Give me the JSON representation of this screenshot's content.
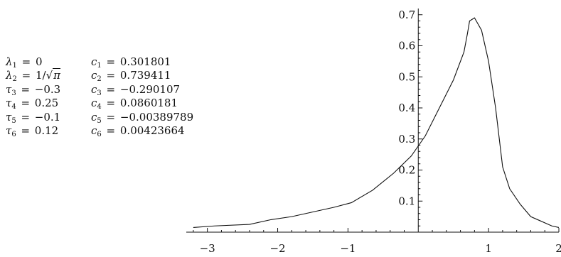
{
  "params": [
    {
      "left_sym": "λ",
      "left_sub": "1",
      "left_val": "0",
      "right_sym": "c",
      "right_sub": "1",
      "right_val": "0.301801"
    },
    {
      "left_sym": "λ",
      "left_sub": "2",
      "left_val": "1/",
      "left_sqrt": "π",
      "right_sym": "c",
      "right_sub": "2",
      "right_val": "0.739411"
    },
    {
      "left_sym": "τ",
      "left_sub": "3",
      "left_val": "−0.3",
      "right_sym": "c",
      "right_sub": "3",
      "right_val": "−0.290107"
    },
    {
      "left_sym": "τ",
      "left_sub": "4",
      "left_val": "0.25",
      "right_sym": "c",
      "right_sub": "4",
      "right_val": "0.0860181"
    },
    {
      "left_sym": "τ",
      "left_sub": "5",
      "left_val": "−0.1",
      "right_sym": "c",
      "right_sub": "5",
      "right_val": "−0.00389789"
    },
    {
      "left_sym": "τ",
      "left_sub": "6",
      "left_val": "0.12",
      "right_sym": "c",
      "right_sub": "6",
      "right_val": "0.00423664"
    }
  ],
  "chart_data": {
    "type": "line",
    "title": "",
    "xlabel": "",
    "ylabel": "",
    "xlim": [
      -3.3,
      2.0
    ],
    "ylim": [
      0,
      0.72
    ],
    "x_ticks": [
      -3,
      -2,
      -1,
      1,
      2
    ],
    "x_tick_labels": [
      "−3",
      "−2",
      "−1",
      "1",
      "2"
    ],
    "y_ticks": [
      0.1,
      0.2,
      0.3,
      0.4,
      0.5,
      0.6,
      0.7
    ],
    "y_tick_labels": [
      "0.1",
      "0.2",
      "0.3",
      "0.4",
      "0.5",
      "0.6",
      "0.7"
    ],
    "grid": false,
    "series": [
      {
        "x": [
          -3.2,
          -2.9,
          -2.4,
          -2.1,
          -1.8,
          -1.4,
          -1.2,
          -0.95,
          -0.65,
          -0.35,
          -0.1,
          0.1,
          0.3,
          0.5,
          0.65,
          0.7,
          0.73,
          0.8,
          0.9,
          1.0,
          1.1,
          1.2,
          1.3,
          1.45,
          1.6,
          1.75,
          1.9,
          2.0
        ],
        "y": [
          0.015,
          0.02,
          0.025,
          0.04,
          0.05,
          0.07,
          0.08,
          0.095,
          0.135,
          0.19,
          0.245,
          0.31,
          0.4,
          0.49,
          0.58,
          0.64,
          0.68,
          0.69,
          0.65,
          0.55,
          0.4,
          0.21,
          0.14,
          0.09,
          0.05,
          0.035,
          0.02,
          0.015
        ]
      }
    ]
  }
}
